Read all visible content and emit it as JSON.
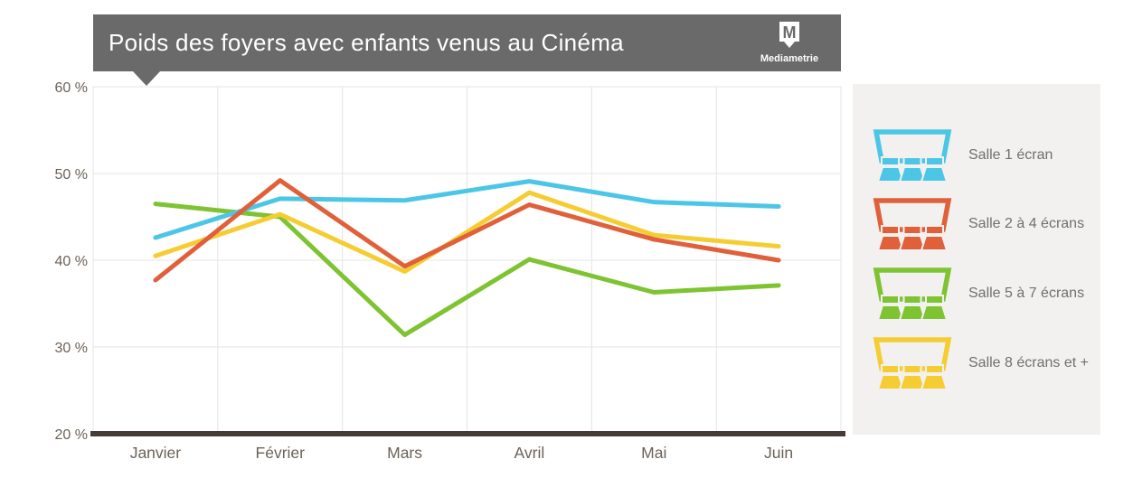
{
  "title": {
    "text": "Poids des foyers avec enfants venus au Cinéma",
    "logo_monogram": "M",
    "logo_text": "Mediametrie",
    "background": "#6a6a6a"
  },
  "chart_data": {
    "type": "line",
    "x": [
      "Janvier",
      "Février",
      "Mars",
      "Avril",
      "Mai",
      "Juin"
    ],
    "series": [
      {
        "name": "Salle 1 écran",
        "color": "#4cc6e6",
        "values": [
          42.6,
          47.1,
          46.9,
          49.1,
          46.7,
          46.2
        ]
      },
      {
        "name": "Salle 2 à 4 écrans",
        "color": "#e0603a",
        "values": [
          37.7,
          49.2,
          39.3,
          46.4,
          42.4,
          40.0
        ]
      },
      {
        "name": "Salle 5 à 7 écrans",
        "color": "#7dc332",
        "values": [
          46.5,
          45.0,
          31.4,
          40.1,
          36.3,
          37.1
        ]
      },
      {
        "name": "Salle 8 écrans et +",
        "color": "#f5cd33",
        "values": [
          40.5,
          45.3,
          38.7,
          47.8,
          42.9,
          41.6
        ]
      }
    ],
    "y_ticks": [
      "60 %",
      "50 %",
      "40 %",
      "30 %",
      "20 %"
    ],
    "ylim": [
      20,
      60
    ],
    "grid": true,
    "legend_position": "right",
    "grid_color": "#e4e4e4",
    "axis_color": "#453c37",
    "tick_color": "#6b6259",
    "line_width": 5
  },
  "legend": {
    "background": "#f2f1ef"
  }
}
